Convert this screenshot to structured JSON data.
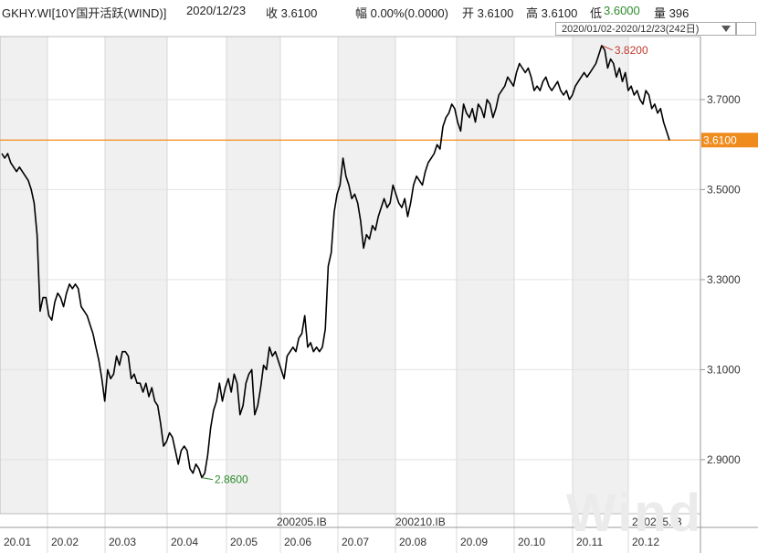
{
  "header": {
    "code": "GKHY.WI[10Y国开活跃(WIND)]",
    "date": "2020/12/23",
    "close": "收 3.6100",
    "change": "幅 0.00%(0.0000)",
    "open": "开 3.6100",
    "high": "高 3.6100",
    "low_label": "低",
    "low_value": "3.6000",
    "volume": "量 396"
  },
  "range_selector": "2020/01/02-2020/12/23(242日)",
  "watermark": "Wind",
  "colors": {
    "price_line": "#000000",
    "current_line": "#f08c1e",
    "max_label": "#c0392b",
    "min_label": "#2e8b2e",
    "low_value": "#2e8b2e",
    "shade": "#f0f0f0"
  },
  "chart_data": {
    "type": "line",
    "x_tick_labels": [
      "20.01",
      "20.02",
      "20.03",
      "20.04",
      "20.05",
      "20.06",
      "20.07",
      "20.08",
      "20.09",
      "20.10",
      "20.11",
      "20.12"
    ],
    "contract_labels": [
      "200205.IB",
      "200210.IB",
      "200215.IB"
    ],
    "y_ticks": [
      2.9,
      3.1,
      3.3,
      3.5,
      3.7
    ],
    "y_tick_labels": [
      "2.9000",
      "3.1000",
      "3.3000",
      "3.5000",
      "3.7000"
    ],
    "ylim": [
      2.78,
      3.84
    ],
    "current_value": 3.61,
    "current_label": "3.6100",
    "max": {
      "value": 3.82,
      "label": "3.8200"
    },
    "min": {
      "value": 2.86,
      "label": "2.8600"
    },
    "series": [
      {
        "values": [
          3.58,
          3.57,
          3.58,
          3.56,
          3.55,
          3.54,
          3.55,
          3.54,
          3.53,
          3.52,
          3.5,
          3.47,
          3.4,
          3.23,
          3.26,
          3.26,
          3.22,
          3.21,
          3.25,
          3.27,
          3.26,
          3.24,
          3.27,
          3.29,
          3.28,
          3.29,
          3.28,
          3.24,
          3.23,
          3.22,
          3.2,
          3.18,
          3.15,
          3.12,
          3.08,
          3.03,
          3.1,
          3.08,
          3.09,
          3.13,
          3.11,
          3.14,
          3.14,
          3.13,
          3.08,
          3.09,
          3.07,
          3.07,
          3.05,
          3.07,
          3.04,
          3.06,
          3.03,
          3.02,
          2.98,
          2.93,
          2.94,
          2.96,
          2.95,
          2.92,
          2.89,
          2.92,
          2.93,
          2.92,
          2.88,
          2.87,
          2.89,
          2.88,
          2.86,
          2.87,
          2.91,
          2.97,
          3.01,
          3.03,
          3.07,
          3.03,
          3.06,
          3.08,
          3.05,
          3.09,
          3.07,
          3.0,
          3.02,
          3.07,
          3.09,
          3.1,
          3.0,
          3.02,
          3.06,
          3.11,
          3.1,
          3.15,
          3.13,
          3.14,
          3.12,
          3.1,
          3.08,
          3.13,
          3.14,
          3.15,
          3.14,
          3.17,
          3.18,
          3.22,
          3.15,
          3.16,
          3.14,
          3.15,
          3.14,
          3.15,
          3.19,
          3.33,
          3.36,
          3.45,
          3.49,
          3.51,
          3.57,
          3.53,
          3.51,
          3.48,
          3.49,
          3.47,
          3.43,
          3.37,
          3.4,
          3.39,
          3.42,
          3.41,
          3.44,
          3.46,
          3.48,
          3.46,
          3.47,
          3.51,
          3.49,
          3.47,
          3.46,
          3.48,
          3.44,
          3.47,
          3.51,
          3.53,
          3.52,
          3.51,
          3.54,
          3.56,
          3.57,
          3.58,
          3.6,
          3.59,
          3.64,
          3.66,
          3.67,
          3.69,
          3.68,
          3.65,
          3.63,
          3.69,
          3.67,
          3.66,
          3.68,
          3.65,
          3.69,
          3.68,
          3.66,
          3.7,
          3.69,
          3.66,
          3.68,
          3.71,
          3.72,
          3.73,
          3.75,
          3.74,
          3.73,
          3.76,
          3.78,
          3.77,
          3.76,
          3.77,
          3.75,
          3.72,
          3.73,
          3.72,
          3.74,
          3.75,
          3.73,
          3.72,
          3.73,
          3.74,
          3.72,
          3.71,
          3.72,
          3.7,
          3.71,
          3.73,
          3.74,
          3.75,
          3.76,
          3.75,
          3.76,
          3.77,
          3.78,
          3.8,
          3.82,
          3.81,
          3.77,
          3.79,
          3.78,
          3.75,
          3.77,
          3.74,
          3.76,
          3.72,
          3.73,
          3.71,
          3.72,
          3.7,
          3.69,
          3.72,
          3.71,
          3.68,
          3.69,
          3.67,
          3.68,
          3.65,
          3.63,
          3.61
        ]
      }
    ]
  }
}
